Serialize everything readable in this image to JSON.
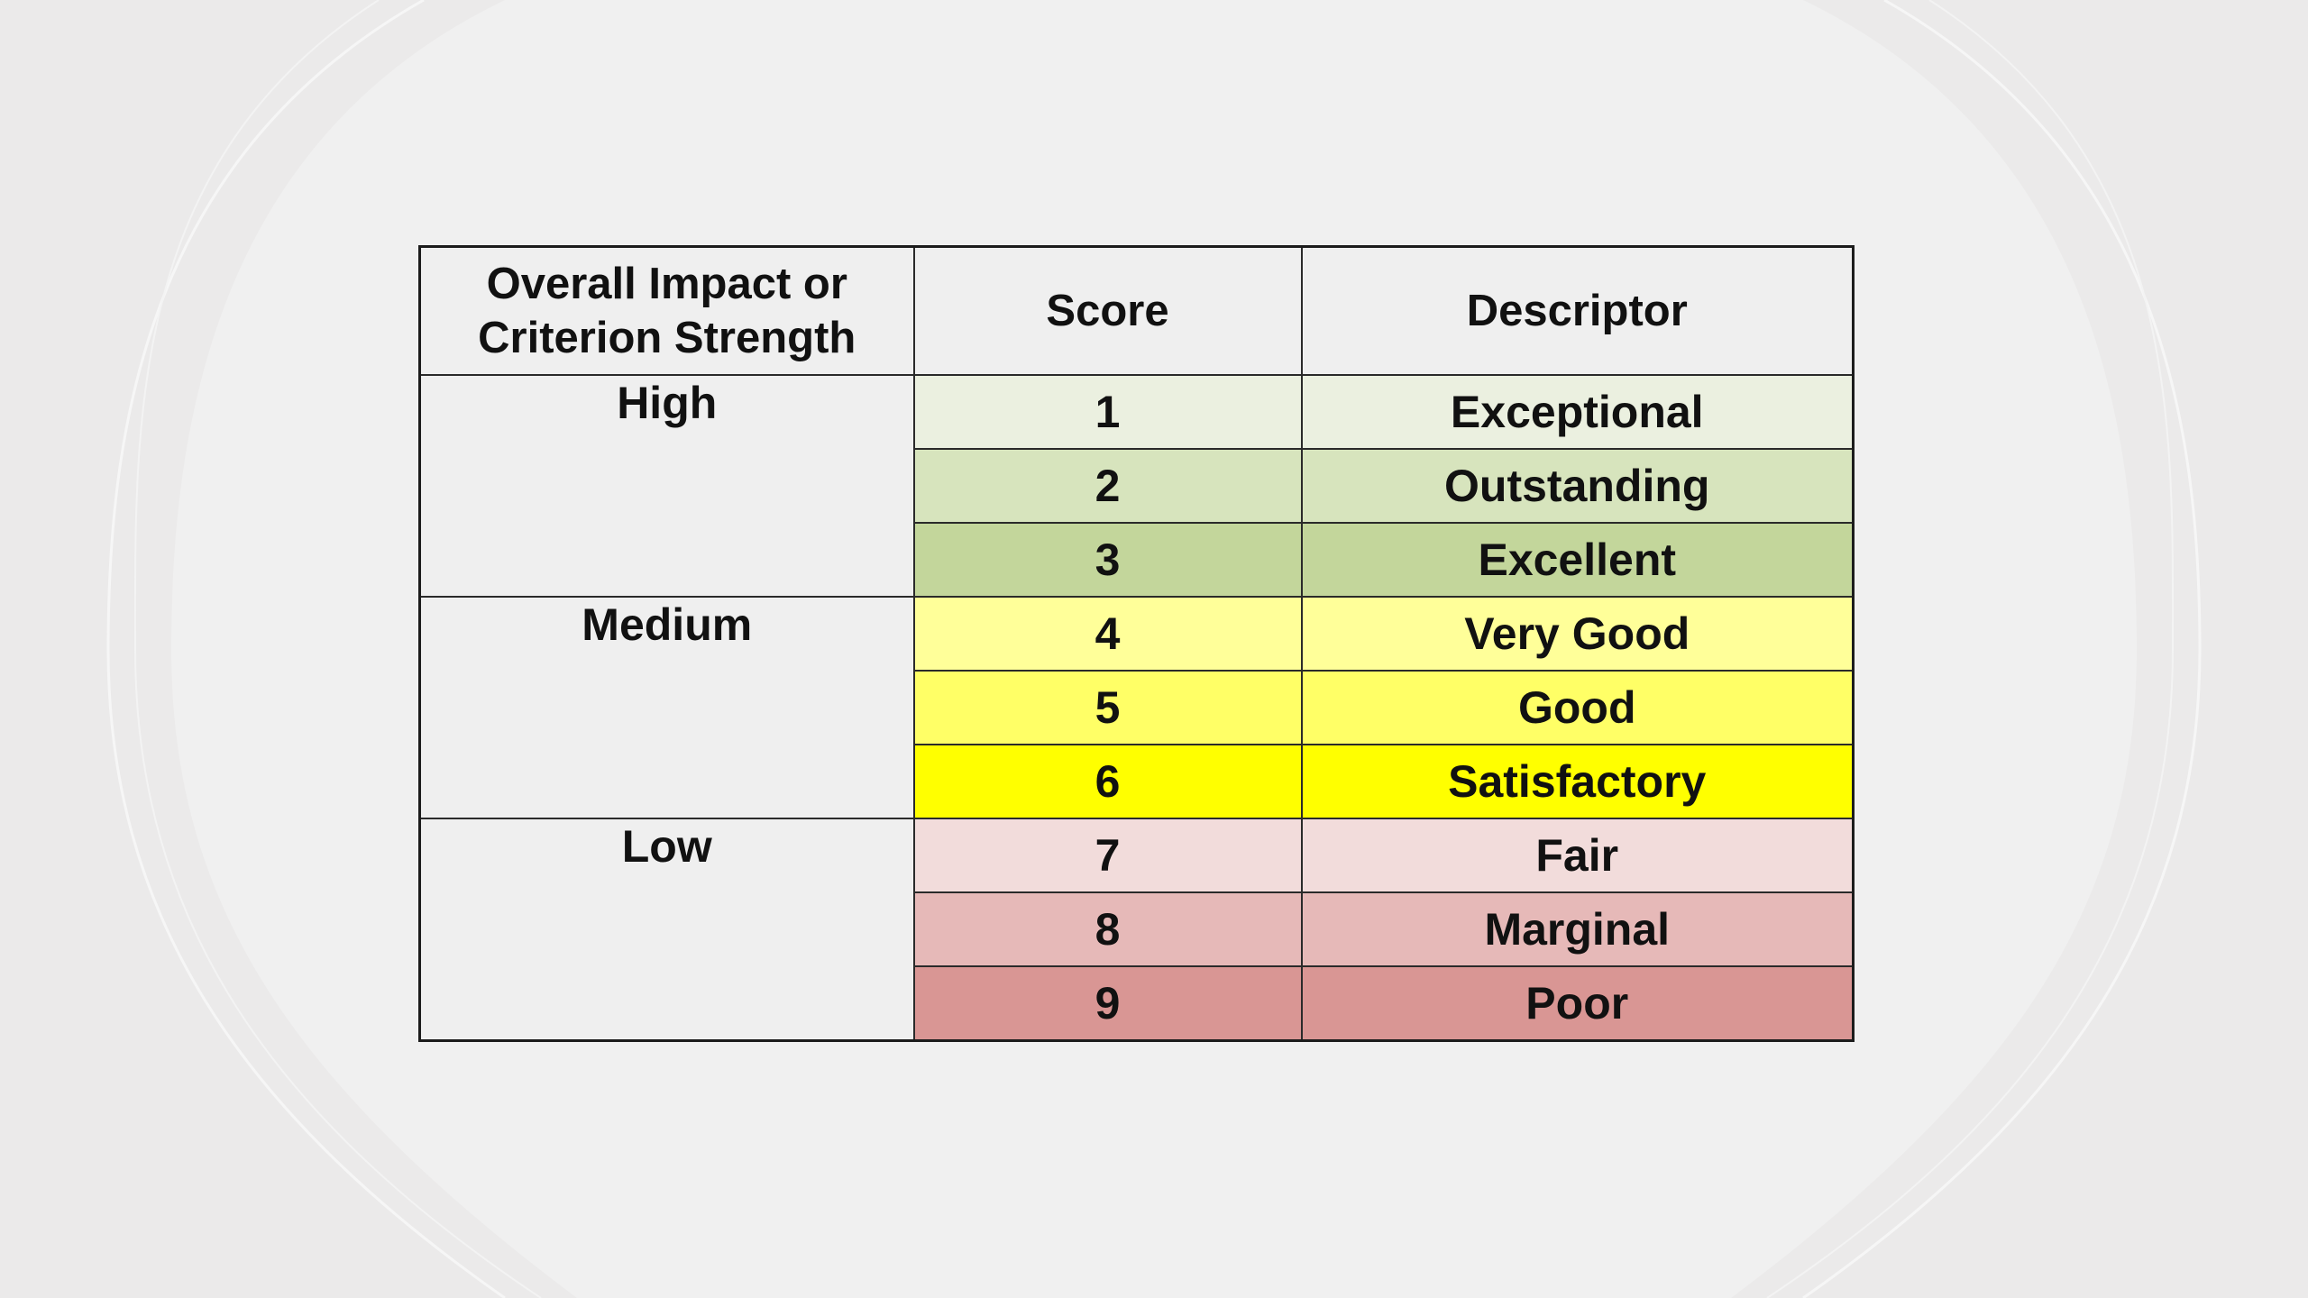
{
  "header": {
    "col1": "Overall Impact or Criterion Strength",
    "col2": "Score",
    "col3": "Descriptor"
  },
  "groups": [
    {
      "level": "High",
      "rows": [
        {
          "score": "1",
          "descriptor": "Exceptional",
          "color": "#ebf0e0"
        },
        {
          "score": "2",
          "descriptor": "Outstanding",
          "color": "#d7e4bd"
        },
        {
          "score": "3",
          "descriptor": "Excellent",
          "color": "#c3d69b"
        }
      ]
    },
    {
      "level": "Medium",
      "rows": [
        {
          "score": "4",
          "descriptor": "Very Good",
          "color": "#ffff99"
        },
        {
          "score": "5",
          "descriptor": "Good",
          "color": "#ffff66"
        },
        {
          "score": "6",
          "descriptor": "Satisfactory",
          "color": "#ffff00"
        }
      ]
    },
    {
      "level": "Low",
      "rows": [
        {
          "score": "7",
          "descriptor": "Fair",
          "color": "#f2dcdb"
        },
        {
          "score": "8",
          "descriptor": "Marginal",
          "color": "#e6b9b8"
        },
        {
          "score": "9",
          "descriptor": "Poor",
          "color": "#d99694"
        }
      ]
    }
  ]
}
